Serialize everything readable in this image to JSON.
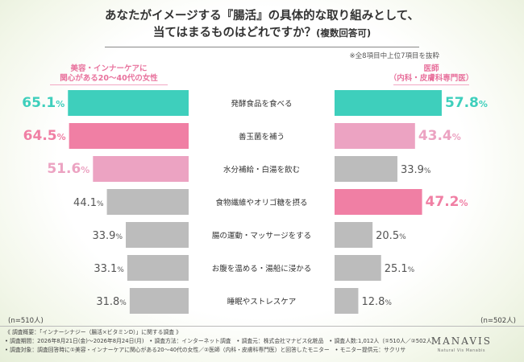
{
  "title": {
    "line1": "あなたがイメージする『腸活』の具体的な取り組みとして、",
    "line2": "当てはまるものはどれですか？",
    "line2_sub": "(複数回答可)"
  },
  "note": "※全8項目中上位7項目を抜粋",
  "colors": {
    "teal": "#3ecfbc",
    "pink_dark": "#f07fa4",
    "pink_light": "#eca3c2",
    "gray": "#bcbcbc",
    "label_pink": "#e8729d"
  },
  "chart_data": {
    "type": "bar",
    "orientation": "horizontal-butterfly",
    "categories": [
      "発酵食品を食べる",
      "善玉菌を補う",
      "水分補給・白湯を飲む",
      "食物繊維やオリゴ糖を摂る",
      "腸の運動・マッサージをする",
      "お腹を温める・湯船に浸かる",
      "睡眠やストレスケア"
    ],
    "unit": "%",
    "series": [
      {
        "name": "美容・インナーケアに関心がある20〜40代の女性",
        "name_line1": "美容・インナーケアに",
        "name_line2": "関心がある20〜40代の女性",
        "n_label": "(n=510人)",
        "values": [
          65.1,
          64.5,
          51.6,
          44.1,
          33.9,
          33.1,
          31.8
        ],
        "bar_colors": [
          "teal",
          "pink_dark",
          "pink_light",
          "gray",
          "gray",
          "gray",
          "gray"
        ]
      },
      {
        "name": "医師（内科・皮膚科専門医）",
        "name_line1": "医師",
        "name_line2": "（内科・皮膚科専門医）",
        "n_label": "(n=502人)",
        "values": [
          57.8,
          43.4,
          33.9,
          47.2,
          20.5,
          25.1,
          12.8
        ],
        "bar_colors": [
          "teal",
          "pink_light",
          "gray",
          "pink_dark",
          "gray",
          "gray",
          "gray"
        ]
      }
    ]
  },
  "footer": {
    "line1": "《 調査概要：「インナーシナジー（腸活×ビタミンD）」に関する調査 》",
    "line2": "• 調査期間：2026年8月21日(金)〜2026年8月24日(月)　• 調査方法：インターネット調査　• 調査元：株式会社マナビス化粧品　• 調査人数:1,012人（①510人／②502人）",
    "line3": "• 調査対象：調査回答時に①美容・インナーケアに関心がある20〜40代の女性／②医師（内科・皮膚科専門医）と回答したモニター　• モニター提供元：サクリサ"
  },
  "logo": {
    "name": "MANAVIS",
    "tagline": "Natural Vis Manabis"
  }
}
